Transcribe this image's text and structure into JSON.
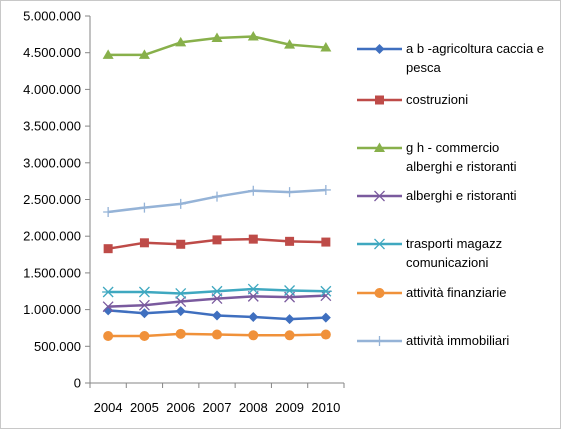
{
  "chart_data": {
    "type": "line",
    "title": "",
    "xlabel": "",
    "ylabel": "",
    "ylim": [
      0,
      5000000
    ],
    "y_ticks": [
      0,
      500000,
      1000000,
      1500000,
      2000000,
      2500000,
      3000000,
      3500000,
      4000000,
      4500000,
      5000000
    ],
    "y_tick_labels": [
      "0",
      "500.000",
      "1.000.000",
      "1.500.000",
      "2.000.000",
      "2.500.000",
      "3.000.000",
      "3.500.000",
      "4.000.000",
      "4.500.000",
      "5.000.000"
    ],
    "categories": [
      "2004",
      "2005",
      "2006",
      "2007",
      "2008",
      "2009",
      "2010"
    ],
    "grid": false,
    "legend_position": "right",
    "series": [
      {
        "name": [
          "a b -agricoltura caccia e",
          "pesca"
        ],
        "color": "#3f6fbf",
        "marker": "diamond",
        "values": [
          990000,
          950000,
          980000,
          920000,
          900000,
          870000,
          890000
        ]
      },
      {
        "name": [
          "costruzioni"
        ],
        "color": "#be4b48",
        "marker": "square",
        "values": [
          1830000,
          1910000,
          1890000,
          1950000,
          1960000,
          1930000,
          1920000
        ]
      },
      {
        "name": [
          "g h - commercio",
          "alberghi e ristoranti"
        ],
        "color": "#88b04b",
        "marker": "triangle",
        "values": [
          4470000,
          4470000,
          4640000,
          4700000,
          4720000,
          4610000,
          4570000
        ]
      },
      {
        "name": [
          "alberghi e ristoranti"
        ],
        "color": "#7a5a9e",
        "marker": "x",
        "values": [
          1040000,
          1060000,
          1110000,
          1150000,
          1180000,
          1170000,
          1190000
        ]
      },
      {
        "name": [
          "trasporti magazz",
          "comunicazioni"
        ],
        "color": "#3fa8c0",
        "marker": "star",
        "values": [
          1240000,
          1240000,
          1220000,
          1250000,
          1280000,
          1260000,
          1250000
        ]
      },
      {
        "name": [
          "attività finanziarie"
        ],
        "color": "#f0913a",
        "marker": "circle",
        "values": [
          640000,
          640000,
          670000,
          660000,
          650000,
          650000,
          660000
        ]
      },
      {
        "name": [
          "attività immobiliari"
        ],
        "color": "#95b3d7",
        "marker": "plus",
        "values": [
          2330000,
          2390000,
          2440000,
          2540000,
          2620000,
          2600000,
          2630000
        ]
      }
    ]
  }
}
